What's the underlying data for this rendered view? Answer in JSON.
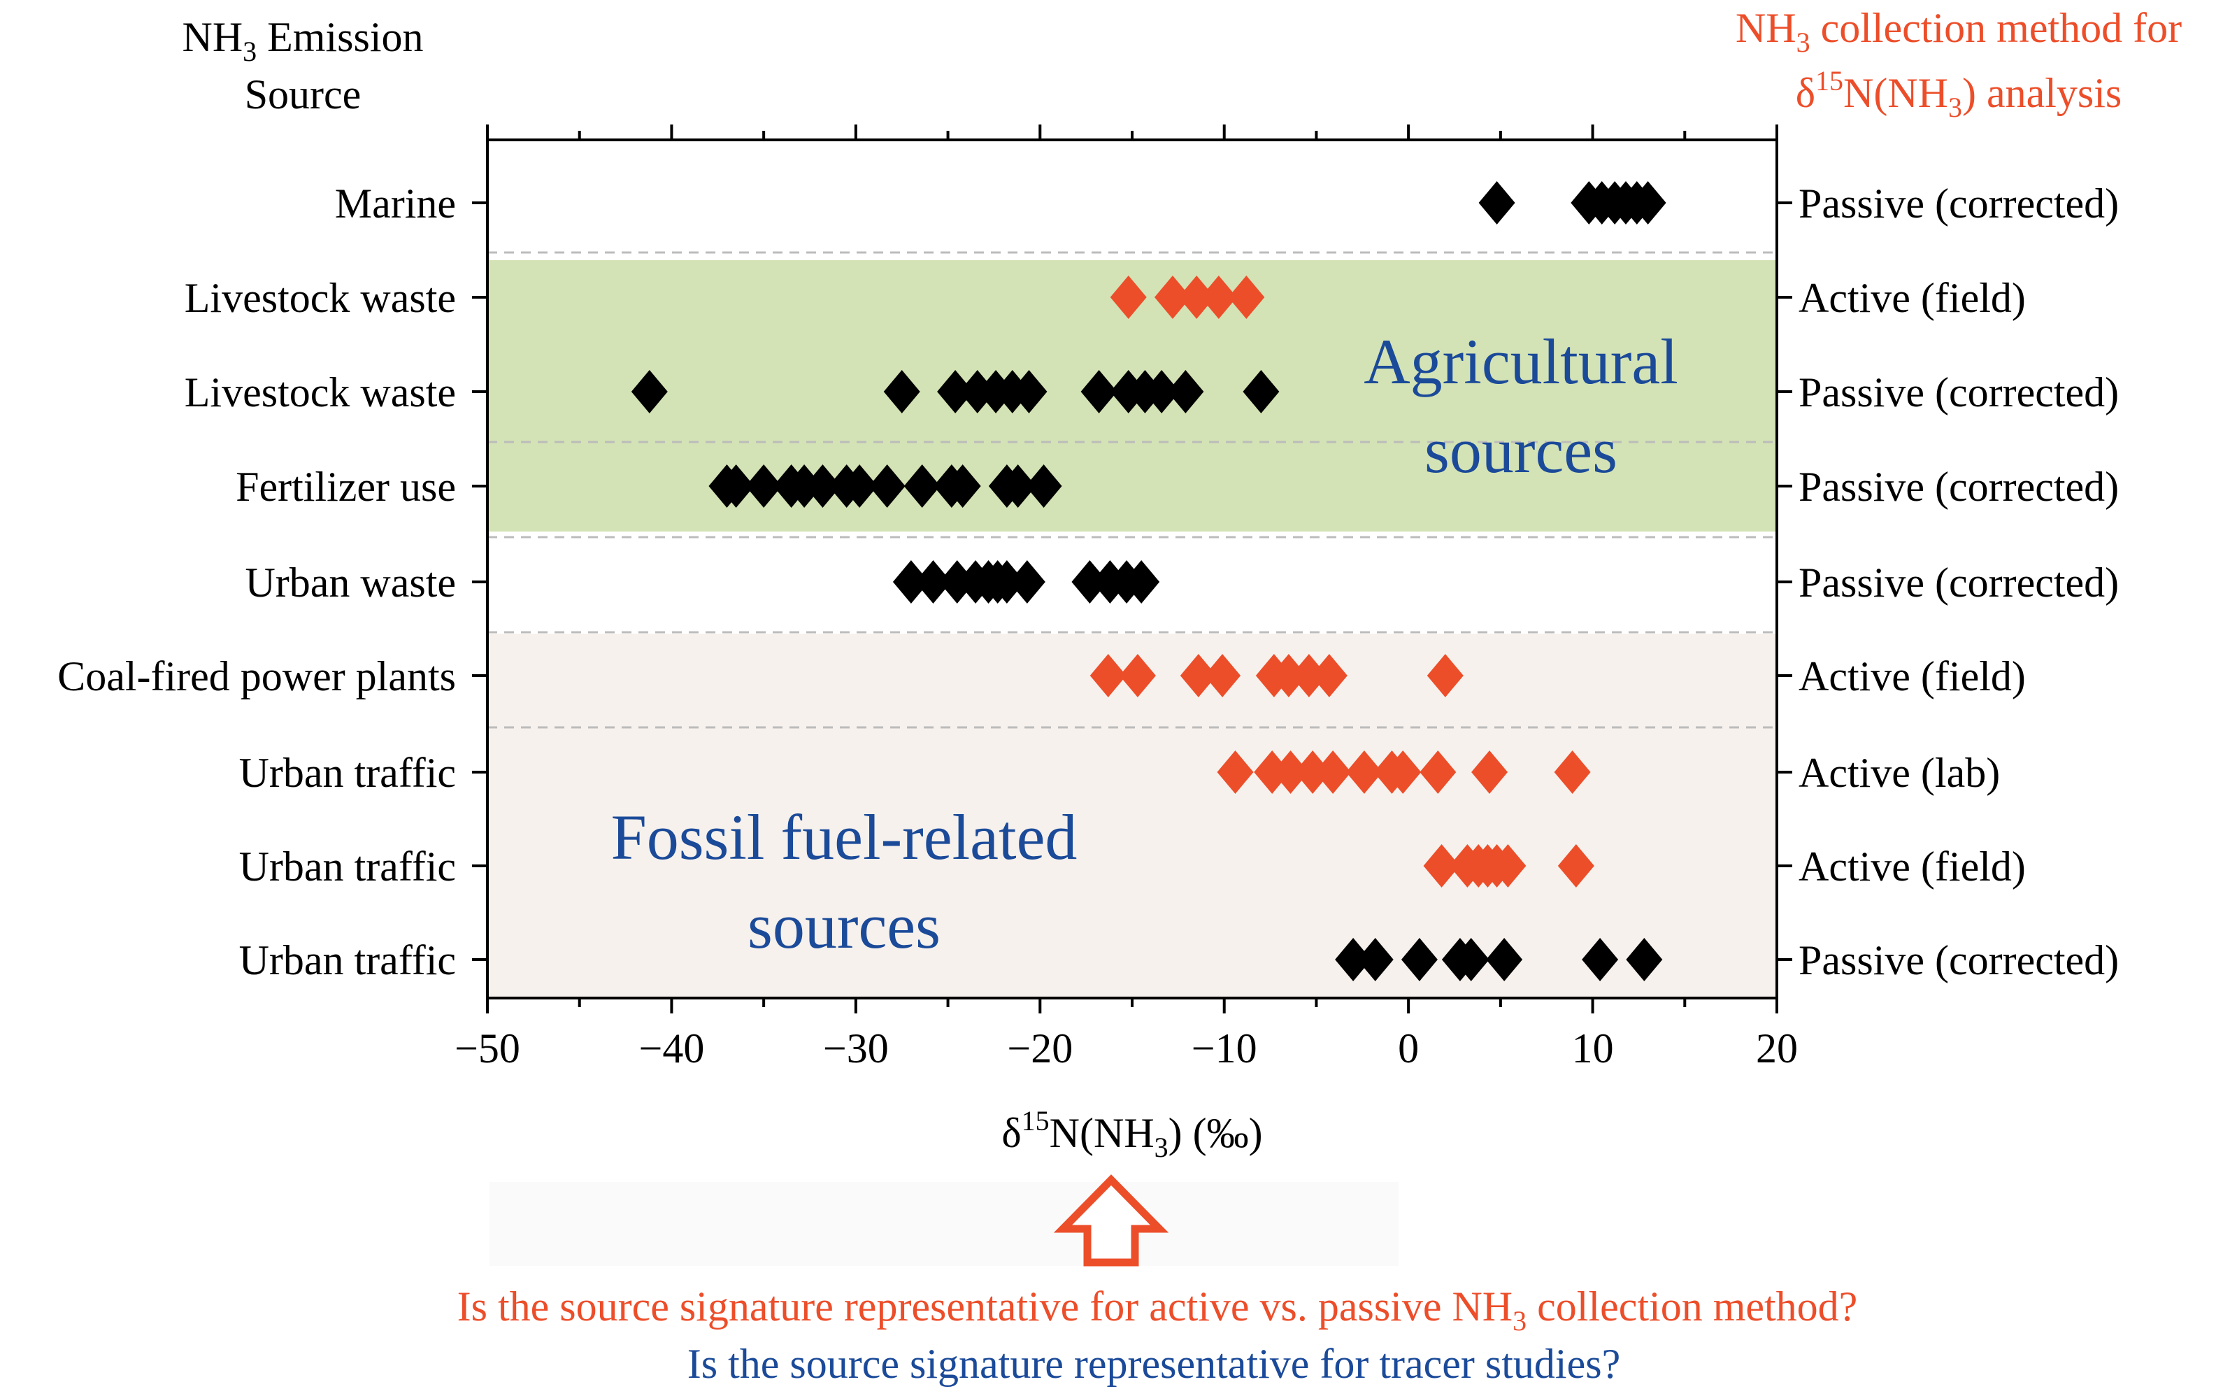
{
  "chart_data": {
    "type": "scatter",
    "marker": "diamond",
    "xlabel": "δ15N(NH3) (‰)",
    "xlabel_parts": {
      "pre": "δ",
      "sup": "15",
      "mid": "N(NH",
      "sub": "3",
      "post": ") (‰)"
    },
    "xlim": [
      -50,
      20
    ],
    "xticks": [
      -50,
      -40,
      -30,
      -20,
      -10,
      0,
      10,
      20
    ],
    "xtick_labels": [
      "−50",
      "−40",
      "−30",
      "−20",
      "−10",
      "0",
      "10",
      "20"
    ],
    "left_axis_title": {
      "line1_pre": "NH",
      "line1_sub": "3",
      "line1_post": " Emission",
      "line2": "Source"
    },
    "right_axis_title": {
      "line1_pre": "NH",
      "line1_sub": "3",
      "line1_post": " collection method for",
      "line2_pre": "δ",
      "line2_sup": "15",
      "line2_mid": "N(NH",
      "line2_sub": "3",
      "line2_post": ") analysis"
    },
    "rows": [
      {
        "source": "Marine",
        "method": "Passive (corrected)",
        "marker_color": "black",
        "values": [
          4.8,
          9.8,
          10.5,
          11.2,
          11.8,
          12.4,
          13.0
        ]
      },
      {
        "source": "Livestock waste",
        "method": "Active (field)",
        "marker_color": "orange",
        "values": [
          -15.2,
          -12.8,
          -11.5,
          -10.3,
          -8.8
        ]
      },
      {
        "source": "Livestock waste",
        "method": "Passive (corrected)",
        "marker_color": "black",
        "values": [
          -41.2,
          -27.5,
          -24.6,
          -23.4,
          -22.4,
          -21.5,
          -20.6,
          -16.8,
          -15.2,
          -14.3,
          -13.4,
          -12.1,
          -8.0
        ]
      },
      {
        "source": "Fertilizer use",
        "method": "Passive (corrected)",
        "marker_color": "black",
        "values": [
          -37.0,
          -36.5,
          -35.0,
          -33.5,
          -32.8,
          -31.8,
          -30.5,
          -29.8,
          -28.3,
          -26.4,
          -24.8,
          -24.2,
          -21.8,
          -21.2,
          -19.8
        ]
      },
      {
        "source": "Urban waste",
        "method": "Passive (corrected)",
        "marker_color": "black",
        "values": [
          -27.0,
          -25.8,
          -24.5,
          -23.5,
          -22.8,
          -22.3,
          -21.8,
          -20.7,
          -17.3,
          -16.2,
          -15.3,
          -14.5
        ]
      },
      {
        "source": "Coal-fired power plants",
        "method": "Active (field)",
        "marker_color": "orange",
        "values": [
          -16.3,
          -14.7,
          -11.4,
          -10.1,
          -7.3,
          -6.5,
          -5.4,
          -4.3,
          2.0
        ]
      },
      {
        "source": "Urban traffic",
        "method": "Active (lab)",
        "marker_color": "orange",
        "values": [
          -9.4,
          -7.4,
          -6.4,
          -5.2,
          -4.1,
          -2.4,
          -0.9,
          -0.3,
          1.6,
          4.4,
          8.9
        ]
      },
      {
        "source": "Urban traffic",
        "method": "Active (field)",
        "marker_color": "orange",
        "values": [
          1.8,
          3.2,
          3.8,
          4.3,
          4.8,
          5.4,
          9.1
        ]
      },
      {
        "source": "Urban traffic",
        "method": "Passive (corrected)",
        "marker_color": "black",
        "values": [
          -3.0,
          -1.8,
          0.6,
          2.8,
          3.4,
          5.2,
          10.4,
          12.8
        ]
      }
    ],
    "bands": [
      {
        "name": "agricultural",
        "label_lines": [
          "Agricultural",
          "sources"
        ],
        "rows": [
          1,
          2,
          3
        ],
        "color": "#d3e3b5"
      },
      {
        "name": "fossil",
        "label_lines": [
          "Fossil fuel-related",
          "sources"
        ],
        "rows": [
          5,
          6,
          7,
          8
        ],
        "color": "#f6f1ed"
      }
    ]
  },
  "colors": {
    "black_marker": "#000000",
    "orange_marker": "#ec4e2a",
    "orange_text": "#ec4e2a",
    "blue_text": "#1b4a99",
    "agri_band": "#d3e3b5",
    "fossil_band": "#f6f1ed",
    "divider": "#bcbcbc"
  },
  "bottom": {
    "arrow_icon": "up-arrow-outline-icon",
    "question1_pre": "Is the source signature representative for active vs. passive NH",
    "question1_sub": "3",
    "question1_post": " collection method?",
    "question2": "Is the source signature representative for tracer studies?"
  }
}
